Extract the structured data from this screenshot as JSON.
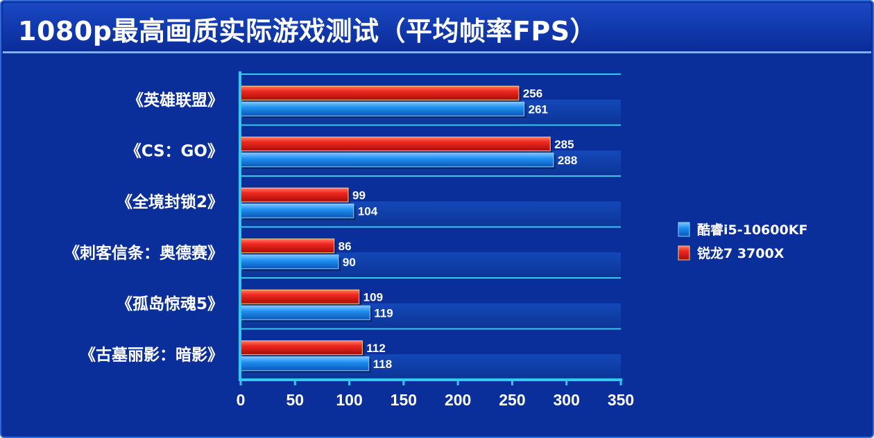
{
  "chart_data": {
    "type": "bar",
    "orientation": "horizontal",
    "title": "1080p最高画质实际游戏测试（平均帧率FPS）",
    "categories": [
      "《英雄联盟》",
      "《CS：GO》",
      "《全境封锁2》",
      "《刺客信条：奥德赛》",
      "《孤岛惊魂5》",
      "《古墓丽影：暗影》"
    ],
    "series": [
      {
        "name": "锐龙7 3700X",
        "color": "#e8201c",
        "values": [
          256,
          285,
          99,
          86,
          109,
          112
        ]
      },
      {
        "name": "酷睿i5-10600KF",
        "color": "#1a8aee",
        "values": [
          261,
          288,
          104,
          90,
          119,
          118
        ]
      }
    ],
    "xlim": [
      0,
      350
    ],
    "xticks": [
      0,
      50,
      100,
      150,
      200,
      250,
      300,
      350
    ],
    "grid": true,
    "legend_position": "right",
    "legend_order": [
      "酷睿i5-10600KF",
      "锐龙7 3700X"
    ]
  }
}
